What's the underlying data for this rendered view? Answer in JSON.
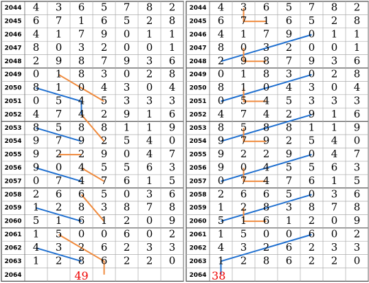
{
  "left": {
    "rows": [
      [
        "2044",
        [
          4,
          3,
          6,
          5,
          7,
          8,
          2
        ]
      ],
      [
        "2045",
        [
          6,
          7,
          1,
          6,
          5,
          2,
          8
        ]
      ],
      [
        "2046",
        [
          4,
          1,
          7,
          9,
          0,
          1,
          1
        ]
      ],
      [
        "2047",
        [
          8,
          0,
          3,
          2,
          0,
          0,
          1
        ]
      ],
      [
        "2048",
        [
          2,
          9,
          8,
          7,
          9,
          3,
          6
        ]
      ],
      [
        "2049",
        [
          0,
          1,
          8,
          3,
          0,
          2,
          8
        ]
      ],
      [
        "2050",
        [
          8,
          1,
          0,
          4,
          3,
          0,
          4
        ]
      ],
      [
        "2051",
        [
          0,
          5,
          4,
          5,
          3,
          3,
          3
        ]
      ],
      [
        "2052",
        [
          4,
          7,
          4,
          2,
          9,
          1,
          6
        ]
      ],
      [
        "2053",
        [
          8,
          5,
          8,
          8,
          1,
          1,
          9
        ]
      ],
      [
        "2054",
        [
          9,
          7,
          9,
          2,
          5,
          4,
          0
        ]
      ],
      [
        "2055",
        [
          9,
          2,
          2,
          9,
          0,
          4,
          7
        ]
      ],
      [
        "2056",
        [
          9,
          0,
          4,
          5,
          5,
          6,
          3
        ]
      ],
      [
        "2057",
        [
          0,
          7,
          4,
          7,
          6,
          1,
          5
        ]
      ],
      [
        "2058",
        [
          2,
          6,
          6,
          5,
          0,
          3,
          6
        ]
      ],
      [
        "2059",
        [
          1,
          2,
          8,
          3,
          8,
          7,
          8
        ]
      ],
      [
        "2060",
        [
          5,
          1,
          6,
          1,
          2,
          0,
          9
        ]
      ],
      [
        "2061",
        [
          1,
          5,
          0,
          0,
          6,
          0,
          2
        ]
      ],
      [
        "2062",
        [
          4,
          3,
          2,
          6,
          2,
          3,
          3
        ]
      ],
      [
        "2063",
        [
          1,
          2,
          8,
          6,
          2,
          2,
          0
        ]
      ]
    ],
    "next": "2064",
    "result": "49"
  },
  "right": {
    "rows": [
      [
        "2044",
        [
          4,
          3,
          6,
          5,
          7,
          8,
          2
        ]
      ],
      [
        "2045",
        [
          6,
          7,
          1,
          6,
          5,
          2,
          8
        ]
      ],
      [
        "2046",
        [
          4,
          1,
          7,
          9,
          0,
          1,
          1
        ]
      ],
      [
        "2047",
        [
          8,
          0,
          3,
          2,
          0,
          0,
          1
        ]
      ],
      [
        "2048",
        [
          2,
          9,
          8,
          7,
          9,
          3,
          6
        ]
      ],
      [
        "2049",
        [
          0,
          1,
          8,
          3,
          0,
          2,
          8
        ]
      ],
      [
        "2050",
        [
          8,
          1,
          0,
          4,
          3,
          0,
          4
        ]
      ],
      [
        "2051",
        [
          0,
          5,
          4,
          5,
          3,
          3,
          3
        ]
      ],
      [
        "2052",
        [
          4,
          7,
          4,
          2,
          9,
          1,
          6
        ]
      ],
      [
        "2053",
        [
          8,
          5,
          8,
          8,
          1,
          1,
          9
        ]
      ],
      [
        "2054",
        [
          9,
          7,
          9,
          2,
          5,
          4,
          0
        ]
      ],
      [
        "2055",
        [
          9,
          2,
          2,
          9,
          0,
          4,
          7
        ]
      ],
      [
        "2056",
        [
          9,
          0,
          4,
          5,
          5,
          6,
          3
        ]
      ],
      [
        "2057",
        [
          0,
          7,
          4,
          7,
          6,
          1,
          5
        ]
      ],
      [
        "2058",
        [
          2,
          6,
          6,
          5,
          0,
          3,
          6
        ]
      ],
      [
        "2059",
        [
          1,
          2,
          8,
          3,
          8,
          7,
          8
        ]
      ],
      [
        "2060",
        [
          5,
          1,
          6,
          1,
          2,
          0,
          9
        ]
      ],
      [
        "2061",
        [
          1,
          5,
          0,
          0,
          6,
          0,
          2
        ]
      ],
      [
        "2062",
        [
          4,
          3,
          2,
          6,
          2,
          3,
          3
        ]
      ],
      [
        "2063",
        [
          1,
          2,
          8,
          6,
          2,
          2,
          0
        ]
      ]
    ],
    "next": "2064",
    "result": "38"
  }
}
